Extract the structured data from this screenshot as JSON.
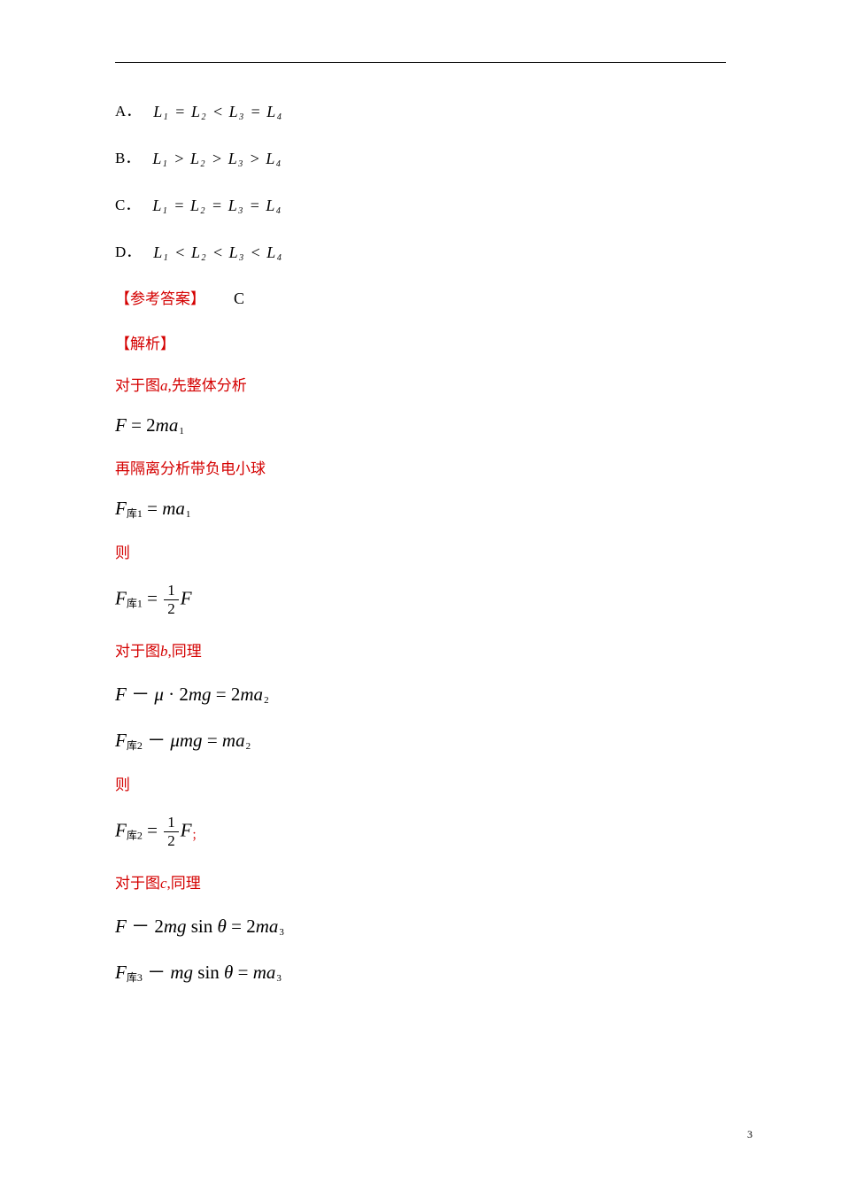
{
  "options": {
    "A": {
      "label": "A．",
      "rel1": "=",
      "rel2": "<",
      "rel3": "="
    },
    "B": {
      "label": "B．",
      "rel1": ">",
      "rel2": ">",
      "rel3": ">"
    },
    "C": {
      "label": "C．",
      "rel1": "=",
      "rel2": "=",
      "rel3": "="
    },
    "D": {
      "label": "D．",
      "rel1": "<",
      "rel2": "<",
      "rel3": "<"
    }
  },
  "answer": {
    "label": "【参考答案】",
    "value": "C"
  },
  "explain_label": "【解析】",
  "steps": {
    "s1": "对于图",
    "s1b": "a",
    "s1c": ",先整体分析",
    "eq1_lhs": "F",
    "eq1_eq": " = ",
    "eq1_rhs_coef": "2",
    "eq1_rhs_var": "ma",
    "eq1_rhs_sub": "1",
    "s2": "再隔离分析带负电小球",
    "eq2_F": "F",
    "eq2_subscript": "库1",
    "eq2_eq": " = ",
    "eq2_rhs": "ma",
    "eq2_rhs_sub": "1",
    "then": "则",
    "eq3_F": "F",
    "eq3_subscript": "库1",
    "eq3_eq": " = ",
    "eq3_frac_num": "1",
    "eq3_frac_den": "2",
    "eq3_rhs": "F",
    "s3a": "对于图",
    "s3b": "b",
    "s3c": ",同理",
    "eq4_text": "F － μ · 2mg = 2ma",
    "eq4_sub": "2",
    "eq5_F": "F",
    "eq5_subscript": "库2",
    "eq5_mid": " － μmg = ma",
    "eq5_sub": "2",
    "eq6_F": "F",
    "eq6_subscript": "库2",
    "eq6_eq": " = ",
    "eq6_frac_num": "1",
    "eq6_frac_den": "2",
    "eq6_rhs": "F",
    "eq6_comma": "；",
    "s4a": "对于图",
    "s4b": "c",
    "s4c": ",同理",
    "eq7_text_a": "F － 2mg",
    "eq7_sin": " sin θ = 2ma",
    "eq7_sub": "3",
    "eq8_F": "F",
    "eq8_subscript": "库3",
    "eq8_mid_a": " － mg",
    "eq8_sin": " sin θ = ma",
    "eq8_sub": "3"
  },
  "pagenum": "3",
  "sym": {
    "L": "L"
  }
}
